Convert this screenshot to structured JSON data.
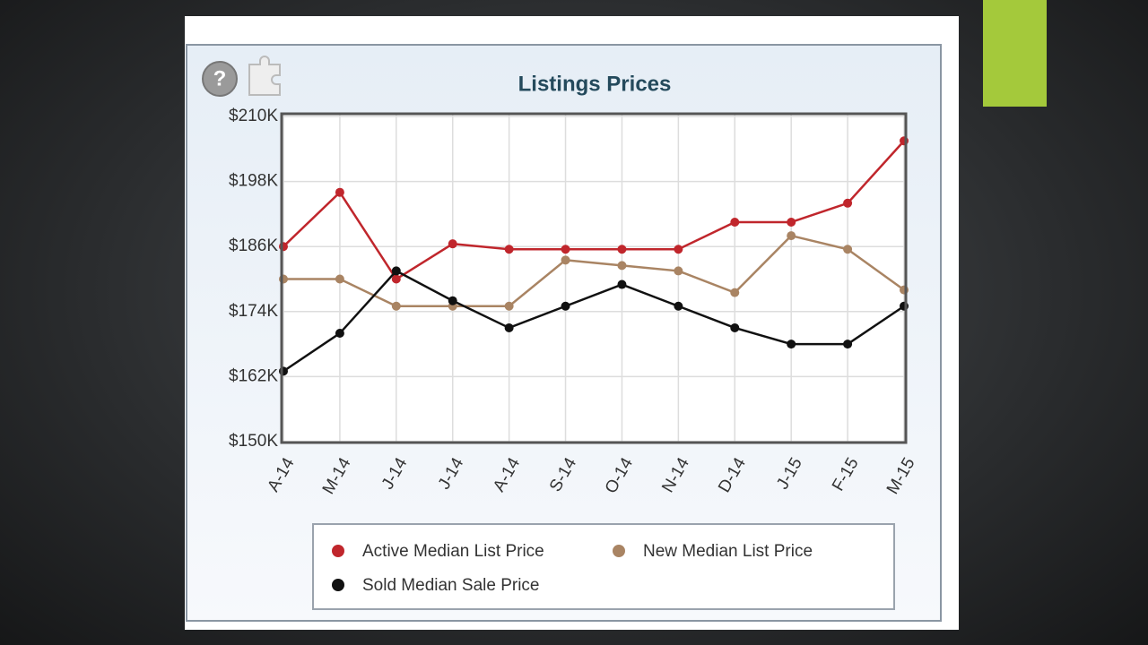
{
  "chart_data": {
    "type": "line",
    "title": "Listings Prices",
    "categories": [
      "A-14",
      "M-14",
      "J-14",
      "J-14",
      "A-14",
      "S-14",
      "O-14",
      "N-14",
      "D-14",
      "J-15",
      "F-15",
      "M-15"
    ],
    "series": [
      {
        "name": "Active Median List Price",
        "color": "#c0262c",
        "values": [
          186000,
          196000,
          180000,
          186500,
          185500,
          185500,
          185500,
          185500,
          190500,
          190500,
          194000,
          205500
        ]
      },
      {
        "name": "New Median List Price",
        "color": "#a98463",
        "values": [
          180000,
          180000,
          175000,
          175000,
          175000,
          183500,
          182500,
          181500,
          177500,
          188000,
          185500,
          178000
        ]
      },
      {
        "name": "Sold Median Sale Price",
        "color": "#111111",
        "values": [
          163000,
          170000,
          181500,
          176000,
          171000,
          175000,
          179000,
          175000,
          171000,
          168000,
          168000,
          175000
        ]
      }
    ],
    "ylim": [
      150000,
      210000
    ],
    "yticks": [
      {
        "value": 150000,
        "label": "$150K"
      },
      {
        "value": 162000,
        "label": "$162K"
      },
      {
        "value": 174000,
        "label": "$174K"
      },
      {
        "value": 186000,
        "label": "$186K"
      },
      {
        "value": 198000,
        "label": "$198K"
      },
      {
        "value": 210000,
        "label": "$210K"
      }
    ],
    "grid": true,
    "legend": "bottom"
  }
}
